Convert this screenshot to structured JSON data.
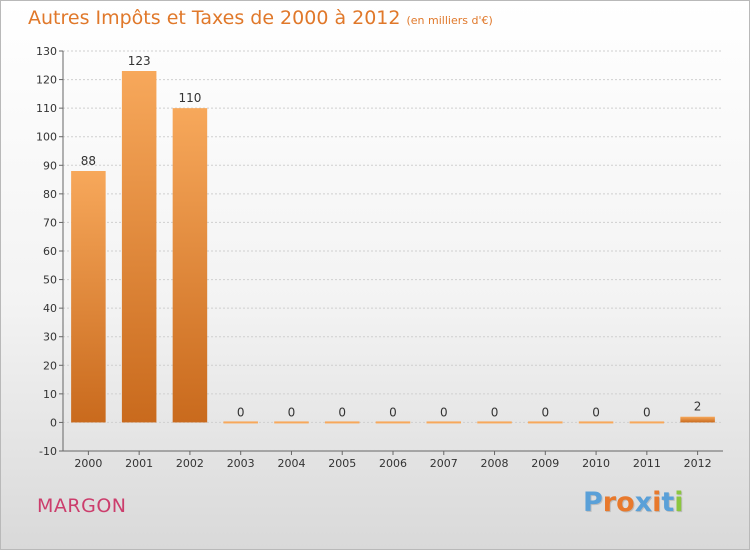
{
  "header": {
    "title": "Autres Impôts et Taxes de 2000 à 2012",
    "unit": "(en milliers d'€)"
  },
  "footer": {
    "commune": "MARGON",
    "logo": "Proxiti"
  },
  "colors": {
    "title": "#e0782a",
    "bar_top": "#f7a85b",
    "bar_bottom": "#c96a1d",
    "commune": "#cc3d6c",
    "logo_letters": [
      "#5aa0d8",
      "#e8792c",
      "#e8792c",
      "#5aa0d8",
      "#e8792c",
      "#5aa0d8",
      "#8cc63f"
    ]
  },
  "chart_data": {
    "type": "bar",
    "title": "Autres Impôts et Taxes de 2000 à 2012",
    "subtitle": "(en milliers d'€)",
    "categories": [
      "2000",
      "2001",
      "2002",
      "2003",
      "2004",
      "2005",
      "2006",
      "2007",
      "2008",
      "2009",
      "2010",
      "2011",
      "2012"
    ],
    "values": [
      88,
      123,
      110,
      0,
      0,
      0,
      0,
      0,
      0,
      0,
      0,
      0,
      2
    ],
    "data_labels": [
      "88",
      "123",
      "110",
      "0",
      "0",
      "0",
      "0",
      "0",
      "0",
      "0",
      "0",
      "0",
      "2"
    ],
    "ylim": [
      -10,
      130
    ],
    "yticks": [
      -10,
      0,
      10,
      20,
      30,
      40,
      50,
      60,
      70,
      80,
      90,
      100,
      110,
      120,
      130
    ],
    "ytick_labels": [
      "-10",
      "0",
      "10",
      "20",
      "30",
      "40",
      "50",
      "60",
      "70",
      "80",
      "90",
      "100",
      "110",
      "120",
      "130"
    ],
    "grid": "horizontal dashed",
    "legend": "none"
  }
}
